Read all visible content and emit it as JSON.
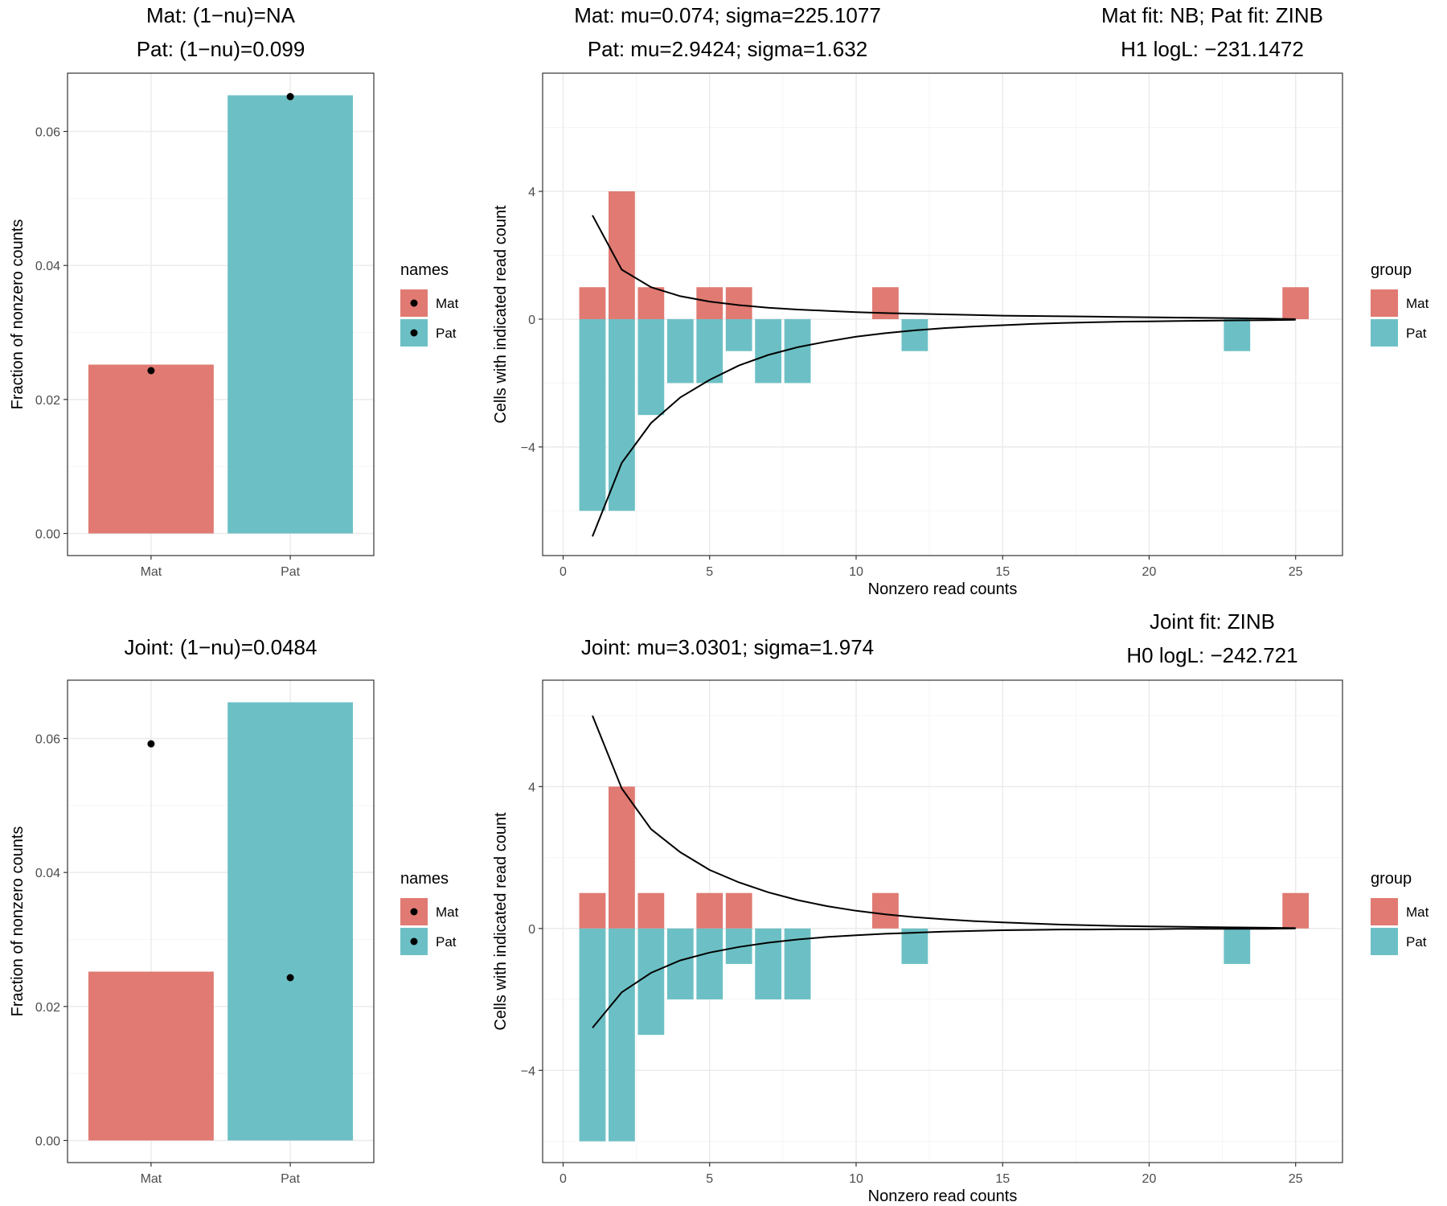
{
  "colors": {
    "mat": "#E07A72",
    "pat": "#6CC0C5",
    "panel_border": "#333333",
    "grid_major": "#EBEBEB",
    "grid_minor": "#F5F5F5",
    "line": "#000000",
    "tick_text": "#4D4D4D"
  },
  "legend": {
    "names": {
      "title": "names",
      "items": [
        "Mat",
        "Pat"
      ]
    },
    "group": {
      "title": "group",
      "items": [
        "Mat",
        "Pat"
      ]
    }
  },
  "chart_data": [
    {
      "id": "top-left",
      "type": "bar",
      "title": [
        "Mat: (1−nu)=NA",
        "Pat: (1−nu)=0.099"
      ],
      "xlabel": "",
      "ylabel": "Fraction of nonzero counts",
      "categories": [
        "Mat",
        "Pat"
      ],
      "values": [
        0.0252,
        0.0654
      ],
      "points": [
        0.0243,
        0.0652
      ],
      "ylim": [
        -0.0033,
        0.0687
      ],
      "yticks": [
        0.0,
        0.02,
        0.04,
        0.06
      ],
      "ytick_labels": [
        "0.00",
        "0.02",
        "0.04",
        "0.06"
      ],
      "legend": "names",
      "grid": true
    },
    {
      "id": "top-right",
      "type": "bar",
      "title_left": [
        "Mat: mu=0.074; sigma=225.1077",
        "Pat: mu=2.9424; sigma=1.632"
      ],
      "title_right": [
        "Mat fit: NB; Pat fit: ZINB",
        "H1 logL: −231.1472"
      ],
      "xlabel": "Nonzero read counts",
      "ylabel": "Cells with indicated read count",
      "xlim": [
        -0.7,
        26.6
      ],
      "ylim": [
        -7.4,
        7.7
      ],
      "xticks": [
        0,
        5,
        10,
        15,
        20,
        25
      ],
      "yticks": [
        -4,
        0,
        4
      ],
      "ytick_labels": [
        "−4",
        "0",
        "4"
      ],
      "legend": "group",
      "grid": true,
      "mat_bars": {
        "x": [
          1,
          2,
          3,
          5,
          6,
          11,
          25
        ],
        "y": [
          1,
          4,
          1,
          1,
          1,
          1,
          1
        ]
      },
      "pat_bars": {
        "x": [
          1,
          2,
          3,
          4,
          5,
          6,
          7,
          8,
          12,
          23
        ],
        "y": [
          -6,
          -6,
          -3,
          -2,
          -2,
          -1,
          -2,
          -2,
          -1,
          -1
        ]
      },
      "mat_curve": {
        "x": [
          1,
          2,
          3,
          4,
          5,
          6,
          7,
          8,
          9,
          10,
          11,
          12,
          13,
          14,
          15,
          16,
          17,
          18,
          19,
          20,
          21,
          22,
          23,
          24,
          25
        ],
        "y": [
          3.25,
          1.55,
          1.0,
          0.72,
          0.55,
          0.44,
          0.36,
          0.3,
          0.26,
          0.22,
          0.19,
          0.17,
          0.15,
          0.13,
          0.11,
          0.1,
          0.09,
          0.08,
          0.07,
          0.06,
          0.05,
          0.04,
          0.03,
          0.02,
          0.0
        ]
      },
      "pat_curve": {
        "x": [
          1,
          2,
          3,
          4,
          5,
          6,
          7,
          8,
          9,
          10,
          11,
          12,
          13,
          14,
          15,
          16,
          17,
          18,
          19,
          20,
          21,
          22,
          23,
          24,
          25
        ],
        "y": [
          -6.8,
          -4.5,
          -3.25,
          -2.45,
          -1.9,
          -1.45,
          -1.12,
          -0.88,
          -0.7,
          -0.55,
          -0.44,
          -0.35,
          -0.28,
          -0.23,
          -0.19,
          -0.15,
          -0.12,
          -0.1,
          -0.08,
          -0.07,
          -0.06,
          -0.05,
          -0.04,
          -0.03,
          -0.02
        ]
      }
    },
    {
      "id": "bottom-left",
      "type": "bar",
      "title": [
        "Joint: (1−nu)=0.0484"
      ],
      "xlabel": "",
      "ylabel": "Fraction of nonzero counts",
      "categories": [
        "Mat",
        "Pat"
      ],
      "values": [
        0.0252,
        0.0654
      ],
      "points": [
        0.0592,
        0.0243
      ],
      "ylim": [
        -0.0033,
        0.0687
      ],
      "yticks": [
        0.0,
        0.02,
        0.04,
        0.06
      ],
      "ytick_labels": [
        "0.00",
        "0.02",
        "0.04",
        "0.06"
      ],
      "legend": "names",
      "grid": true
    },
    {
      "id": "bottom-right",
      "type": "bar",
      "title_left": [
        "Joint: mu=3.0301; sigma=1.974"
      ],
      "title_right": [
        "Joint fit: ZINB",
        "H0 logL: −242.721"
      ],
      "xlabel": "Nonzero read counts",
      "ylabel": "Cells with indicated read count",
      "xlim": [
        -0.7,
        26.6
      ],
      "ylim": [
        -6.6,
        7.0
      ],
      "xticks": [
        0,
        5,
        10,
        15,
        20,
        25
      ],
      "yticks": [
        -4,
        0,
        4
      ],
      "ytick_labels": [
        "−4",
        "0",
        "4"
      ],
      "legend": "group",
      "grid": true,
      "mat_bars": {
        "x": [
          1,
          2,
          3,
          5,
          6,
          11,
          25
        ],
        "y": [
          1,
          4,
          1,
          1,
          1,
          1,
          1
        ]
      },
      "pat_bars": {
        "x": [
          1,
          2,
          3,
          4,
          5,
          6,
          7,
          8,
          12,
          23
        ],
        "y": [
          -6,
          -6,
          -3,
          -2,
          -2,
          -1,
          -2,
          -2,
          -1,
          -1
        ]
      },
      "mat_curve": {
        "x": [
          1,
          2,
          3,
          4,
          5,
          6,
          7,
          8,
          9,
          10,
          11,
          12,
          13,
          14,
          15,
          16,
          17,
          18,
          19,
          20,
          21,
          22,
          23,
          24,
          25
        ],
        "y": [
          6.0,
          3.95,
          2.8,
          2.15,
          1.65,
          1.3,
          1.02,
          0.8,
          0.63,
          0.5,
          0.4,
          0.32,
          0.26,
          0.21,
          0.17,
          0.14,
          0.11,
          0.09,
          0.07,
          0.06,
          0.05,
          0.04,
          0.03,
          0.02,
          0.01
        ]
      },
      "pat_curve": {
        "x": [
          1,
          2,
          3,
          4,
          5,
          6,
          7,
          8,
          9,
          10,
          11,
          12,
          13,
          14,
          15,
          16,
          17,
          18,
          19,
          20,
          21,
          22,
          23,
          24,
          25
        ],
        "y": [
          -2.8,
          -1.8,
          -1.25,
          -0.9,
          -0.68,
          -0.52,
          -0.4,
          -0.31,
          -0.24,
          -0.19,
          -0.15,
          -0.12,
          -0.09,
          -0.07,
          -0.05,
          -0.04,
          -0.03,
          -0.03,
          -0.02,
          -0.02,
          -0.01,
          -0.01,
          -0.01,
          -0.01,
          0.0
        ]
      }
    }
  ]
}
